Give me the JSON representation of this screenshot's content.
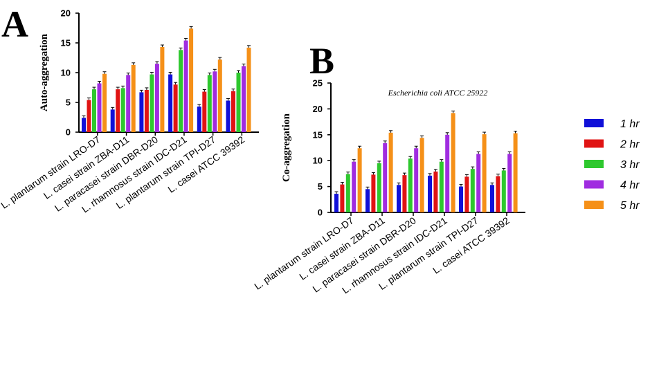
{
  "panels": {
    "a_letter": "A",
    "b_letter": "B"
  },
  "colors": {
    "axis": "#000000",
    "error_bar": "#000000"
  },
  "legend": {
    "entries": [
      {
        "name": "1 hr",
        "color": "#1010d8"
      },
      {
        "name": "2 hr",
        "color": "#e01414"
      },
      {
        "name": "3 hr",
        "color": "#2ec82e"
      },
      {
        "name": "4 hr",
        "color": "#a02ce0"
      },
      {
        "name": "5 hr",
        "color": "#f59018"
      }
    ],
    "placement": "right"
  },
  "chart_data": [
    {
      "type": "bar",
      "panel": "A",
      "title": "",
      "ylabel": "Auto-aggregation",
      "xlabel": "",
      "ylim": [
        0,
        20
      ],
      "yticks": [
        "0",
        "5",
        "10",
        "15",
        "20"
      ],
      "grid": false,
      "categories": [
        "L. plantarum strain LRO-D7",
        "L. casei strain ZBA-D11",
        "L. paracasei strain DBR-D20",
        "L. rhamnosus strain IDC-D21",
        "L. plantarum strain TPI-D27",
        "L. casei ATCC 39392"
      ],
      "series": [
        {
          "name": "1 hr",
          "values": [
            2.4,
            3.8,
            6.7,
            9.7,
            4.3,
            5.3
          ]
        },
        {
          "name": "2 hr",
          "values": [
            5.4,
            7.2,
            7.1,
            8.0,
            6.8,
            6.9
          ]
        },
        {
          "name": "3 hr",
          "values": [
            7.2,
            7.4,
            9.7,
            13.8,
            9.6,
            10.0
          ]
        },
        {
          "name": "4 hr",
          "values": [
            8.2,
            9.6,
            11.5,
            15.4,
            10.2,
            11.1
          ]
        },
        {
          "name": "5 hr",
          "values": [
            9.8,
            11.3,
            14.3,
            17.4,
            12.2,
            14.2
          ]
        }
      ]
    },
    {
      "type": "bar",
      "panel": "B",
      "title": "Escherichia coli ATCC 25922",
      "ylabel": "Co-aggregation",
      "xlabel": "",
      "ylim": [
        0,
        25
      ],
      "yticks": [
        "0",
        "5",
        "10",
        "15",
        "20",
        "25"
      ],
      "grid": false,
      "categories": [
        "L. plantarum strain LRO-D7",
        "L. casei strain ZBA-D11",
        "L. paracasei strain DBR-D20",
        "L. rhamnosus strain IDC-D21",
        "L. plantarum strain TPI-D27",
        "L. casei ATCC 39392"
      ],
      "series": [
        {
          "name": "1 hr",
          "values": [
            3.6,
            4.5,
            5.3,
            7.1,
            5.0,
            5.3
          ]
        },
        {
          "name": "2 hr",
          "values": [
            5.4,
            7.3,
            7.2,
            7.9,
            6.9,
            7.0
          ]
        },
        {
          "name": "3 hr",
          "values": [
            7.4,
            9.5,
            10.4,
            9.8,
            8.4,
            8.1
          ]
        },
        {
          "name": "4 hr",
          "values": [
            9.8,
            13.4,
            12.4,
            15.0,
            11.3,
            11.3
          ]
        },
        {
          "name": "5 hr",
          "values": [
            12.4,
            15.4,
            14.4,
            19.2,
            15.1,
            15.3
          ]
        }
      ]
    }
  ]
}
